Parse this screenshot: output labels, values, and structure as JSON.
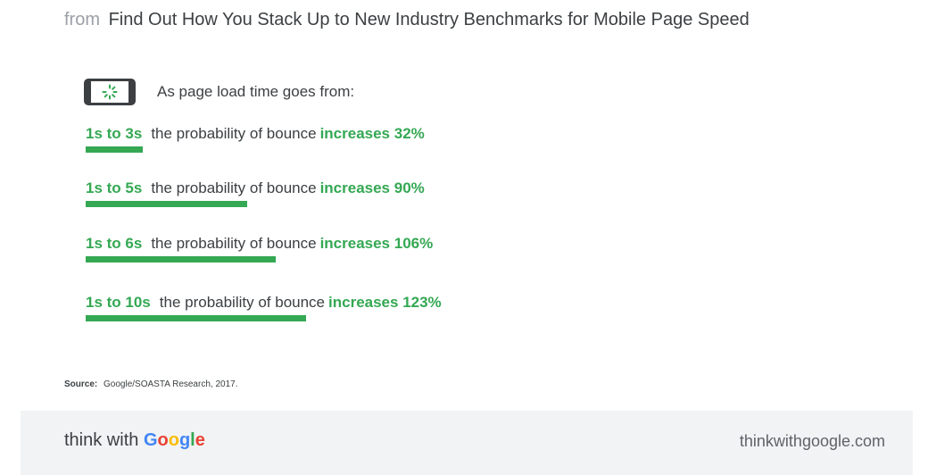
{
  "header": {
    "prefix": "from",
    "title": "Find Out How You Stack Up to New Industry Benchmarks for Mobile Page Speed"
  },
  "intro": {
    "icon": "phone-loading-icon",
    "text": "As page load time goes from:"
  },
  "colors": {
    "accent": "#34a853",
    "text": "#3c4043",
    "footer_bg": "#f1f3f4"
  },
  "chart_data": {
    "type": "bar",
    "categories": [
      "1s to 3s",
      "1s to 5s",
      "1s to 6s",
      "1s to 10s"
    ],
    "values": [
      32,
      90,
      106,
      123
    ],
    "unit": "%",
    "rows": [
      {
        "range": "1s to 3s",
        "phrase": "the probability of bounce",
        "increase": "increases 32%",
        "value": 32
      },
      {
        "range": "1s to 5s",
        "phrase": "the probability of bounce",
        "increase": "increases 90%",
        "value": 90
      },
      {
        "range": "1s to 6s",
        "phrase": "the probability of bounce",
        "increase": "increases 106%",
        "value": 106
      },
      {
        "range": "1s to 10s",
        "phrase": "the probability of bounce",
        "increase": "increases 123%",
        "value": 123
      }
    ]
  },
  "source": {
    "label": "Source:",
    "text": "Google/SOASTA Research, 2017."
  },
  "footer": {
    "logo_prefix": "think with",
    "logo_letters": [
      {
        "char": "G",
        "color": "#4285f4"
      },
      {
        "char": "o",
        "color": "#ea4335"
      },
      {
        "char": "o",
        "color": "#fbbc05"
      },
      {
        "char": "g",
        "color": "#4285f4"
      },
      {
        "char": "l",
        "color": "#34a853"
      },
      {
        "char": "e",
        "color": "#ea4335"
      }
    ],
    "url": "thinkwithgoogle.com"
  }
}
